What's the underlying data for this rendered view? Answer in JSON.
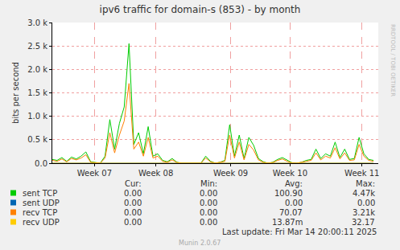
{
  "chart_data": {
    "type": "line",
    "title": "ipv6 traffic for domain-s (853) - by month",
    "y_label": "bits per second",
    "x": [
      0,
      0.5,
      1,
      1.5,
      2,
      2.5,
      3,
      3.5,
      4,
      4.5,
      5,
      5.5,
      6,
      6.5,
      7,
      7.5,
      8,
      8.5,
      9,
      9.5,
      10,
      10.5,
      11,
      11.5,
      12,
      12.5,
      13,
      13.5,
      14,
      14.5,
      15,
      15.5,
      16,
      16.5,
      17,
      17.5,
      18,
      18.5,
      19,
      19.5,
      20,
      20.5,
      21,
      21.5,
      22,
      22.5,
      23,
      23.5,
      24,
      24.5,
      25,
      25.5,
      26,
      26.5,
      27,
      27.5,
      28,
      28.5,
      29,
      29.5,
      30,
      30.5,
      31,
      31.5,
      32,
      32.5,
      33,
      33.5,
      34
    ],
    "xlim": [
      0,
      34
    ],
    "xticks": [
      {
        "value": 4.4,
        "label": "Week 07"
      },
      {
        "value": 10.8,
        "label": "Week 08"
      },
      {
        "value": 18.6,
        "label": "Week 09"
      },
      {
        "value": 24.8,
        "label": "Week 10"
      },
      {
        "value": 32.3,
        "label": "Week 11"
      }
    ],
    "ylim": [
      0,
      3000
    ],
    "yticks": [
      {
        "value": 0,
        "label": "0.0"
      },
      {
        "value": 500,
        "label": "0.5 k"
      },
      {
        "value": 1000,
        "label": "1.0 k"
      },
      {
        "value": 1500,
        "label": "1.5 k"
      },
      {
        "value": 2000,
        "label": "2.0 k"
      },
      {
        "value": 2500,
        "label": "2.5 k"
      },
      {
        "value": 3000,
        "label": "3.0 k"
      }
    ],
    "grid": true,
    "stat_headers": [
      "Cur:",
      "Min:",
      "Avg:",
      "Max:"
    ],
    "series": [
      {
        "name": "sent TCP",
        "color": "#00cc00",
        "cur": "0.00",
        "min": "0.00",
        "avg": "100.90",
        "max": "4.47k",
        "values": [
          80,
          60,
          120,
          40,
          130,
          90,
          150,
          240,
          30,
          10,
          0,
          150,
          930,
          300,
          850,
          1200,
          2550,
          400,
          650,
          200,
          780,
          150,
          200,
          60,
          30,
          100,
          20,
          0,
          0,
          10,
          0,
          0,
          150,
          40,
          0,
          20,
          60,
          820,
          150,
          600,
          100,
          550,
          380,
          100,
          30,
          0,
          20,
          80,
          120,
          60,
          10,
          0,
          20,
          60,
          80,
          300,
          100,
          200,
          150,
          450,
          120,
          300,
          80,
          100,
          550,
          200,
          80,
          60,
          null
        ]
      },
      {
        "name": "sent UDP",
        "color": "#0066b3",
        "cur": "0.00",
        "min": "0.00",
        "avg": "0.00",
        "max": "0.00",
        "values": [
          0,
          0,
          0,
          0,
          0,
          0,
          0,
          0,
          0,
          0,
          0,
          0,
          0,
          0,
          0,
          0,
          0,
          0,
          0,
          0,
          0,
          0,
          0,
          0,
          0,
          0,
          0,
          0,
          0,
          0,
          0,
          0,
          0,
          0,
          0,
          0,
          0,
          0,
          0,
          0,
          0,
          0,
          0,
          0,
          0,
          0,
          0,
          0,
          0,
          0,
          0,
          0,
          0,
          0,
          0,
          0,
          0,
          0,
          0,
          0,
          0,
          0,
          0,
          0,
          0,
          0,
          0,
          0,
          null
        ]
      },
      {
        "name": "recv TCP",
        "color": "#ff8000",
        "cur": "0.00",
        "min": "0.00",
        "avg": "70.07",
        "max": "3.21k",
        "values": [
          60,
          40,
          90,
          30,
          100,
          70,
          110,
          180,
          20,
          10,
          0,
          110,
          650,
          220,
          600,
          900,
          1700,
          300,
          450,
          150,
          550,
          110,
          150,
          40,
          20,
          70,
          15,
          0,
          0,
          5,
          0,
          0,
          110,
          30,
          0,
          15,
          40,
          600,
          110,
          450,
          70,
          400,
          280,
          70,
          20,
          0,
          15,
          60,
          90,
          40,
          5,
          0,
          15,
          40,
          60,
          220,
          70,
          150,
          110,
          330,
          90,
          220,
          60,
          70,
          400,
          150,
          60,
          40,
          null
        ]
      },
      {
        "name": "recv UDP",
        "color": "#ffcc00",
        "cur": "0.00",
        "min": "0.00",
        "avg": "13.87m",
        "max": "32.17",
        "values": [
          0,
          0,
          0,
          0,
          0,
          0,
          0,
          0,
          0,
          0,
          0,
          0,
          0,
          0,
          0,
          0,
          0,
          0,
          0,
          0,
          0,
          0,
          0,
          0,
          0,
          0,
          0,
          0,
          0,
          0,
          0,
          0,
          0,
          0,
          0,
          0,
          0,
          0,
          0,
          0,
          0,
          0,
          0,
          0,
          0,
          0,
          0,
          0,
          0,
          0,
          0,
          0,
          0,
          0,
          0,
          0,
          0,
          0,
          0,
          0,
          0,
          0,
          0,
          0,
          0,
          0,
          0,
          0,
          null
        ]
      }
    ],
    "last_update": "Last update: Fri Mar 14 20:00:11 2025",
    "version": "Munin 2.0.67",
    "watermark": "RRDTOOL / TOBI OETIKER"
  }
}
